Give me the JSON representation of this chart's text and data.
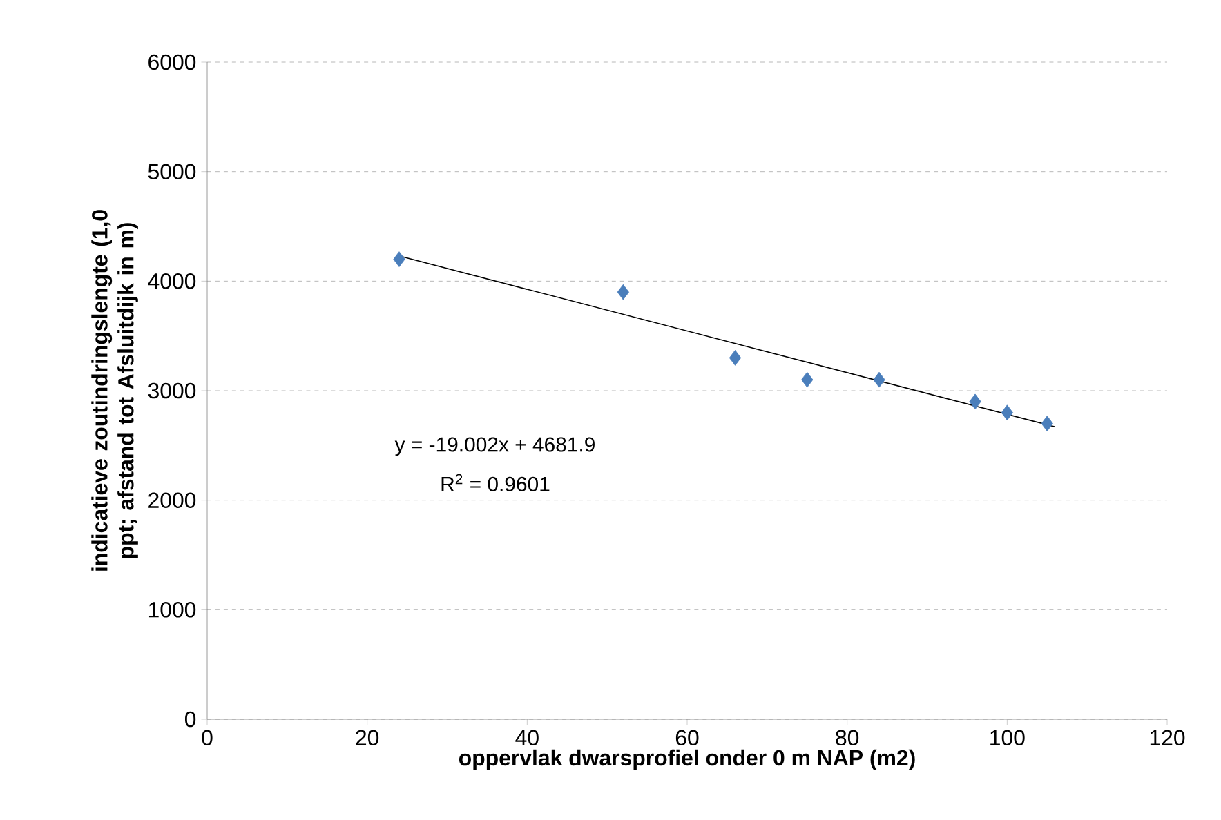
{
  "chart_data": {
    "type": "scatter",
    "xlabel": "oppervlak dwarsprofiel onder 0 m NAP (m2)",
    "ylabel": "indicatieve zoutindringslengte (1,0 ppt; afstand tot Afsluitdijk in m)",
    "x": [
      24,
      52,
      66,
      75,
      84,
      96,
      100,
      105
    ],
    "series": [
      {
        "color": "#4a7ebb",
        "marker": "diamond",
        "values": [
          4200,
          3900,
          3300,
          3100,
          3100,
          2900,
          2800,
          2700
        ]
      },
      {
        "type": "line",
        "color": "#000000",
        "marker": "none",
        "x": [
          24,
          106
        ],
        "values": [
          4230,
          2670
        ]
      }
    ],
    "annotations": [
      "y = -19.002x + 4681.9",
      "R$^{2}$ = 0.9601"
    ],
    "xlim": [
      0,
      120
    ],
    "ylim": [
      0,
      6000
    ],
    "xticks": [
      0,
      20,
      40,
      60,
      80,
      100,
      120
    ],
    "yticks": [
      0,
      1000,
      2000,
      3000,
      4000,
      5000,
      6000
    ],
    "grid": "y"
  }
}
